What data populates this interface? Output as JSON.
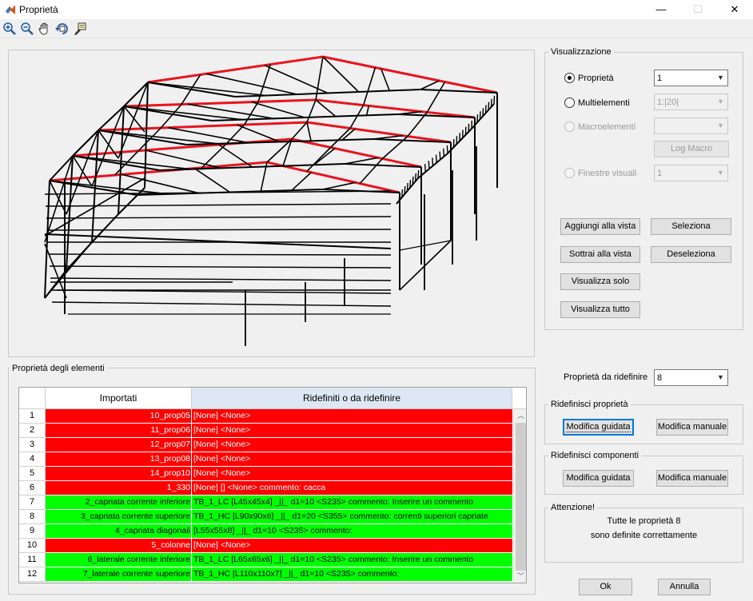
{
  "window": {
    "title": "Proprietà",
    "minimize": "—",
    "maximize": "☐",
    "close": "✕"
  },
  "toolbar": {
    "tools": [
      {
        "icon": "zoom-in-icon"
      },
      {
        "icon": "zoom-out-icon"
      },
      {
        "icon": "pan-hand-icon"
      },
      {
        "icon": "rotate-3d-icon"
      },
      {
        "icon": "data-cursor-icon"
      }
    ]
  },
  "visualizzazione": {
    "title": "Visualizzazione",
    "proprieta": {
      "label": "Proprietà",
      "value": "1",
      "checked": true
    },
    "multielementi": {
      "label": "Multielementi",
      "value": "1:|20|"
    },
    "macroelementi": {
      "label": "Macroelementi",
      "value": ""
    },
    "log_macro": "Log Macro",
    "finestre_visuali": {
      "label": "Finestre visuali",
      "value": "1"
    },
    "buttons": {
      "aggiungi": "Aggiungi alla vista",
      "seleziona": "Seleziona",
      "sottrai": "Sottrai alla vista",
      "deseleziona": "Deseleziona",
      "visualizza_solo": "Visualizza solo",
      "visualizza_tutto": "Visualizza tutto"
    }
  },
  "proprieta_da_ridefinire": {
    "label": "Proprietà da ridefinire",
    "value": "8"
  },
  "ridefinisci_proprieta": {
    "title": "Ridefinisci proprietà",
    "guidata": "Modifica guidata",
    "manuale": "Modifica manuale"
  },
  "ridefinisci_componenti": {
    "title": "Ridefinisci componenti",
    "guidata": "Modifica guidata",
    "manuale": "Modifica manuale"
  },
  "attenzione": {
    "title": "Attenzione!",
    "line1": "Tutte le proprietà 8",
    "line2": "sono definite correttamente"
  },
  "footer": {
    "ok": "Ok",
    "annulla": "Annulla"
  },
  "table": {
    "group_title": "Proprietà degli elementi",
    "headers": [
      "Importati",
      "Ridefiniti o da ridefinire"
    ],
    "rows": [
      {
        "n": "1",
        "imported": "10_prop05",
        "redefined": "[None]  <None>",
        "status": "red"
      },
      {
        "n": "2",
        "imported": "11_prop06",
        "redefined": "[None]  <None>",
        "status": "red"
      },
      {
        "n": "3",
        "imported": "12_prop07",
        "redefined": "[None]  <None>",
        "status": "red"
      },
      {
        "n": "4",
        "imported": "13_prop08",
        "redefined": "[None]  <None>",
        "status": "red"
      },
      {
        "n": "5",
        "imported": "14_prop10",
        "redefined": "[None]  <None>",
        "status": "red"
      },
      {
        "n": "6",
        "imported": "1_330",
        "redefined": "[None] [] <None> commento: cacca",
        "status": "red"
      },
      {
        "n": "7",
        "imported": "2_capriata corrente inferiore",
        "redefined": "TB_1_LC  [L45x45x4] _||_ d1=10 <S235> commento: Inserire un commento",
        "status": "green"
      },
      {
        "n": "8",
        "imported": "3_capriata corrente superiore",
        "redefined": "TB_1_HC  [L90x90x6] _||_ d1=20 <S355> commento: correnti superiori capriate",
        "status": "green"
      },
      {
        "n": "9",
        "imported": "4_capriata diagonali",
        "redefined": "[L55x55x8]  _||_ d1=10 <S235> commento:",
        "status": "green"
      },
      {
        "n": "10",
        "imported": "5_colonne",
        "redefined": "[None]  <None>",
        "status": "red"
      },
      {
        "n": "11",
        "imported": "6_laterale corrente inferiore",
        "redefined": "TB_1_LC  [L65x65x6] _||_ d1=10 <S235> commento: Inserire un commento",
        "status": "green"
      },
      {
        "n": "12",
        "imported": "7_laterale corrente superiore",
        "redefined": "TB_1_HC  [L110x110x7] _||_ d1=10 <S235> commento:",
        "status": "green"
      }
    ]
  }
}
